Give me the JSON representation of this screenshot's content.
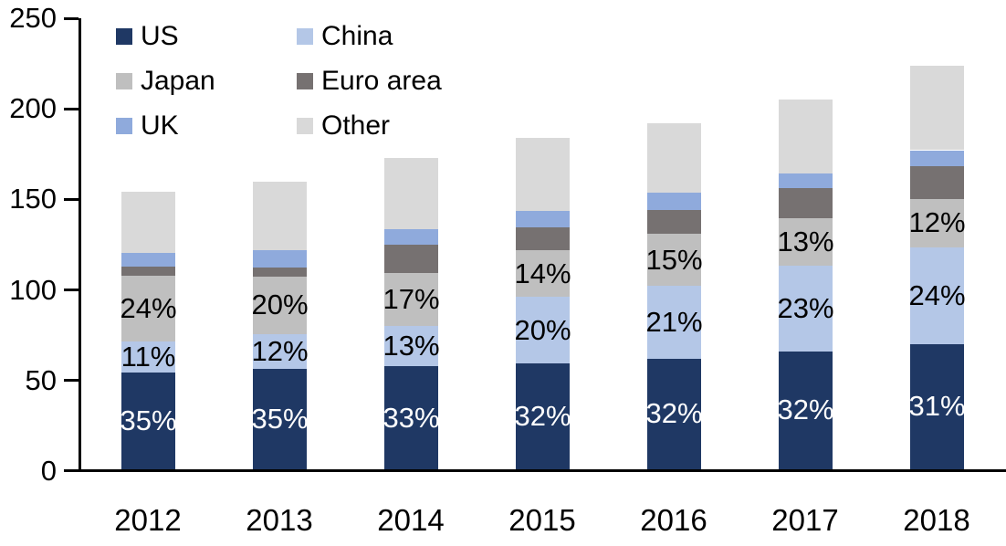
{
  "chart_data": {
    "type": "bar",
    "stacked": true,
    "title": "",
    "xlabel": "",
    "ylabel": "",
    "categories": [
      "2012",
      "2013",
      "2014",
      "2015",
      "2016",
      "2017",
      "2018"
    ],
    "totals": [
      153,
      159,
      172,
      183,
      191,
      204,
      223
    ],
    "series": [
      {
        "name": "US",
        "color": "#1F3864",
        "percentages": [
          35,
          35,
          33,
          32,
          32,
          32,
          31
        ],
        "labeled": true,
        "label_color": "#FFFFFF"
      },
      {
        "name": "China",
        "color": "#B4C7E7",
        "percentages": [
          11,
          12,
          13,
          20,
          21,
          23,
          24
        ],
        "labeled": true,
        "label_color": "#000000"
      },
      {
        "name": "Japan",
        "color": "#BFBFBF",
        "percentages": [
          24,
          20,
          17,
          14,
          15,
          13,
          12
        ],
        "labeled": true,
        "label_color": "#000000"
      },
      {
        "name": "Euro area",
        "color": "#767171",
        "percentages": [
          3,
          3,
          9,
          7,
          7,
          8,
          8
        ],
        "labeled": false,
        "label_color": "#000000"
      },
      {
        "name": "UK",
        "color": "#8FAADC",
        "percentages": [
          5,
          6,
          5,
          5,
          5,
          4,
          4
        ],
        "labeled": false,
        "label_color": "#000000"
      },
      {
        "name": "Other",
        "color": "#D9D9D9",
        "percentages": [
          22,
          24,
          23,
          22,
          20,
          20,
          21
        ],
        "labeled": false,
        "label_color": "#000000"
      }
    ],
    "values_are": "percent_of_total_stacked_to_index_level",
    "label_format": "{value}%",
    "y_axis": {
      "min": 0,
      "max": 250,
      "ticks": [
        0,
        50,
        100,
        150,
        200,
        250
      ]
    },
    "grid": false,
    "legend": {
      "position": "top-left",
      "columns": 2,
      "order": [
        "US",
        "China",
        "Japan",
        "Euro area",
        "UK",
        "Other"
      ]
    }
  }
}
